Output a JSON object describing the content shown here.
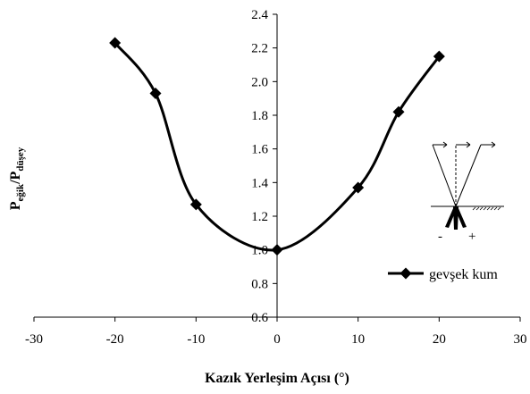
{
  "chart_data": {
    "type": "line",
    "title": "",
    "xlabel": "Kazık Yerleşim Açısı (°)",
    "ylabel": {
      "main1": "P",
      "sub1": "eğik",
      "mid": "/P",
      "sub2": "düşey"
    },
    "xlim": [
      -30,
      30
    ],
    "ylim": [
      0.6,
      2.4
    ],
    "xticks": [
      -30,
      -20,
      -10,
      0,
      10,
      20,
      30
    ],
    "yticks": [
      0.6,
      0.8,
      1.0,
      1.2,
      1.4,
      1.6,
      1.8,
      2.0,
      2.2,
      2.4
    ],
    "grid": false,
    "legend_position": "right",
    "series": [
      {
        "name": "gevşek kum",
        "marker": "diamond",
        "color": "#000000",
        "x": [
          -20,
          -15,
          -10,
          0,
          10,
          15,
          20
        ],
        "y": [
          2.23,
          1.93,
          1.27,
          1.0,
          1.37,
          1.82,
          2.15
        ]
      }
    ],
    "inset_signs": {
      "minus": "-",
      "plus": "+"
    }
  }
}
